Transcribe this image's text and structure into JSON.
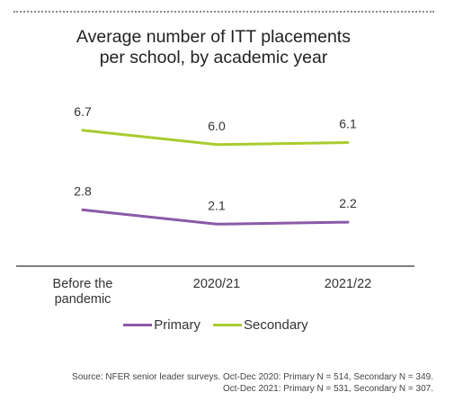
{
  "chart_data": {
    "type": "line",
    "title": [
      "Average number of ITT placements",
      "per school, by academic year"
    ],
    "categories": [
      "Before the pandemic",
      "2020/21",
      "2021/22"
    ],
    "category_lines": [
      [
        "Before the",
        "pandemic"
      ],
      [
        "2020/21"
      ],
      [
        "2021/22"
      ]
    ],
    "series": [
      {
        "name": "Secondary",
        "values": [
          6.7,
          6.0,
          6.1
        ],
        "labels": [
          "6.7",
          "6.0",
          "6.1"
        ],
        "color": "#a8cc2e"
      },
      {
        "name": "Primary",
        "values": [
          2.8,
          2.1,
          2.2
        ],
        "labels": [
          "2.8",
          "2.1",
          "2.2"
        ],
        "color": "#8a5aa8"
      }
    ],
    "legend": {
      "position": "bottom",
      "order": [
        "Primary",
        "Secondary"
      ]
    },
    "ylim": [
      0,
      8
    ],
    "grid": false
  },
  "source": [
    "Source: NFER senior leader surveys. Oct-Dec 2020: Primary N = 514, Secondary N = 349.",
    "Oct-Dec 2021: Primary N = 531, Secondary N = 307."
  ]
}
